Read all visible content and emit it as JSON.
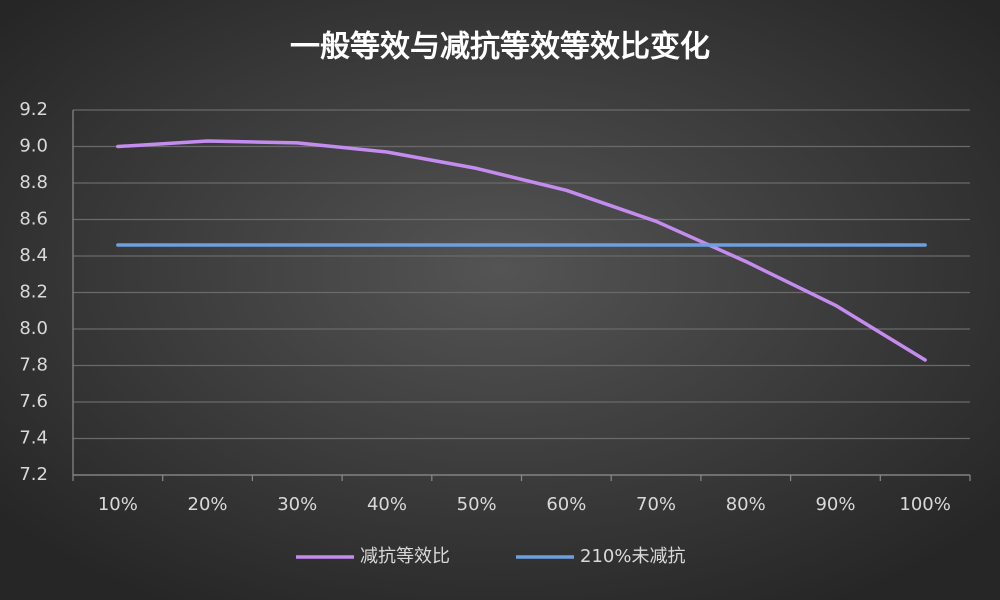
{
  "chart_data": {
    "type": "line",
    "title": "一般等效与减抗等效等效比变化",
    "categories": [
      "10%",
      "20%",
      "30%",
      "40%",
      "50%",
      "60%",
      "70%",
      "80%",
      "90%",
      "100%"
    ],
    "series": [
      {
        "name": "减抗等效比",
        "color": "#c58cf0",
        "values": [
          9.0,
          9.03,
          9.02,
          8.97,
          8.88,
          8.76,
          8.59,
          8.37,
          8.13,
          7.83
        ]
      },
      {
        "name": "210%未减抗",
        "color": "#6e9fe0",
        "values": [
          8.46,
          8.46,
          8.46,
          8.46,
          8.46,
          8.46,
          8.46,
          8.46,
          8.46,
          8.46
        ]
      }
    ],
    "ylim": [
      7.2,
      9.2
    ],
    "yticks": [
      7.2,
      7.4,
      7.6,
      7.8,
      {
        "value": 8,
        "label": "8.0"
      },
      8.2,
      8.4,
      8.6,
      8.8,
      {
        "value": 9,
        "label": "9.0"
      },
      9.2
    ],
    "grid": true,
    "legend": "bottom"
  }
}
